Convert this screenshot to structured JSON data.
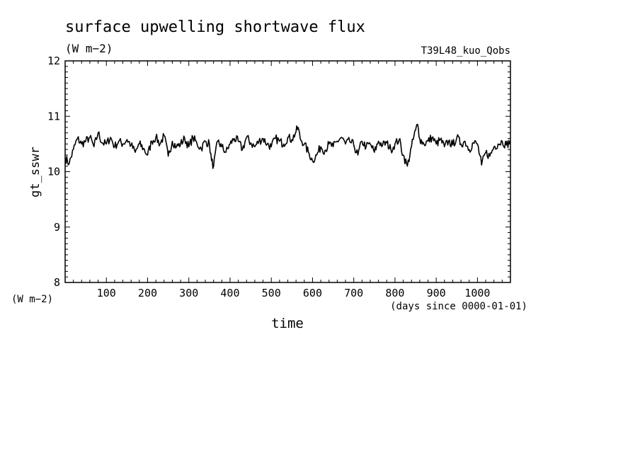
{
  "chart_data": {
    "type": "line",
    "title": "surface upwelling shortwave flux",
    "units": "(W m−2)",
    "experiment": "T39L48_kuo_Qobs",
    "xlabel": "time",
    "xunits": "(days since 0000-01-01)",
    "ylabel": "gt_sswr",
    "yunits": "(W m−2)",
    "xlim": [
      0,
      1080
    ],
    "ylim": [
      8,
      12
    ],
    "x_ticks": [
      100,
      200,
      300,
      400,
      500,
      600,
      700,
      800,
      900,
      1000
    ],
    "y_ticks": [
      8,
      9,
      10,
      11,
      12
    ],
    "series": [
      {
        "color": "#000000",
        "x": [
          0,
          10,
          20,
          30,
          40,
          50,
          60,
          70,
          80,
          90,
          100,
          110,
          120,
          130,
          140,
          150,
          160,
          170,
          180,
          190,
          200,
          210,
          220,
          230,
          240,
          250,
          260,
          270,
          280,
          290,
          300,
          310,
          320,
          330,
          340,
          350,
          355,
          360,
          370,
          380,
          390,
          400,
          410,
          420,
          430,
          440,
          450,
          460,
          470,
          480,
          490,
          500,
          510,
          520,
          530,
          540,
          550,
          560,
          565,
          570,
          580,
          590,
          600,
          610,
          620,
          630,
          640,
          650,
          660,
          670,
          680,
          690,
          700,
          710,
          720,
          730,
          740,
          750,
          760,
          770,
          780,
          790,
          800,
          810,
          820,
          830,
          840,
          850,
          855,
          860,
          870,
          880,
          890,
          900,
          910,
          920,
          930,
          940,
          950,
          960,
          970,
          980,
          990,
          1000,
          1010,
          1020,
          1030,
          1040,
          1050,
          1060,
          1070,
          1080
        ],
        "y": [
          10.25,
          10.15,
          10.4,
          10.6,
          10.5,
          10.55,
          10.62,
          10.45,
          10.7,
          10.52,
          10.5,
          10.62,
          10.45,
          10.55,
          10.5,
          10.58,
          10.48,
          10.35,
          10.5,
          10.42,
          10.3,
          10.55,
          10.62,
          10.5,
          10.65,
          10.28,
          10.55,
          10.45,
          10.5,
          10.6,
          10.45,
          10.62,
          10.5,
          10.42,
          10.55,
          10.5,
          10.2,
          10.1,
          10.55,
          10.45,
          10.35,
          10.5,
          10.6,
          10.55,
          10.4,
          10.62,
          10.52,
          10.45,
          10.55,
          10.6,
          10.5,
          10.45,
          10.6,
          10.55,
          10.5,
          10.62,
          10.58,
          10.72,
          10.8,
          10.6,
          10.5,
          10.35,
          10.2,
          10.3,
          10.45,
          10.38,
          10.5,
          10.45,
          10.55,
          10.62,
          10.5,
          10.55,
          10.48,
          10.3,
          10.55,
          10.45,
          10.5,
          10.35,
          10.55,
          10.48,
          10.52,
          10.4,
          10.5,
          10.58,
          10.3,
          10.1,
          10.45,
          10.75,
          10.85,
          10.6,
          10.5,
          10.55,
          10.62,
          10.5,
          10.58,
          10.45,
          10.55,
          10.48,
          10.62,
          10.5,
          10.55,
          10.4,
          10.52,
          10.5,
          10.12,
          10.35,
          10.28,
          10.45,
          10.5,
          10.55,
          10.48,
          10.55
        ]
      }
    ]
  }
}
